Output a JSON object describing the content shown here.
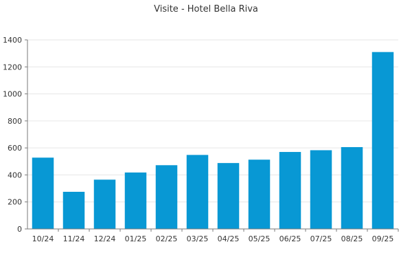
{
  "chart_data": {
    "type": "bar",
    "title": "Visite - Hotel Bella Riva",
    "xlabel": "",
    "ylabel": "",
    "categories": [
      "10/24",
      "11/24",
      "12/24",
      "01/25",
      "02/25",
      "03/25",
      "04/25",
      "05/25",
      "06/25",
      "07/25",
      "08/25",
      "09/25"
    ],
    "values": [
      528,
      275,
      365,
      418,
      472,
      548,
      488,
      513,
      570,
      583,
      606,
      1310
    ],
    "ylim": [
      0,
      1400
    ],
    "yticks": [
      0,
      200,
      400,
      600,
      800,
      1000,
      1200,
      1400
    ],
    "grid": true,
    "legend": "none",
    "bar_color": "#0898d4"
  }
}
